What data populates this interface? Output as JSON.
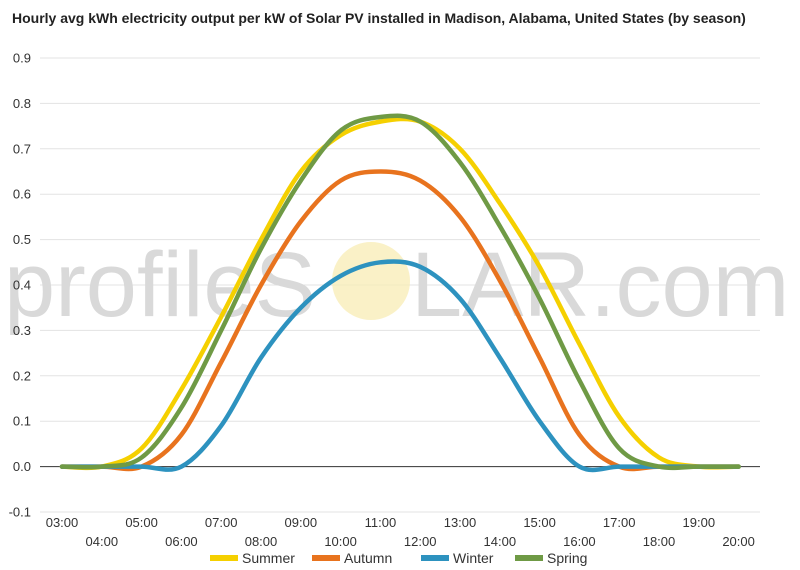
{
  "chart_data": {
    "type": "line",
    "title": "Hourly avg kWh electricity output per kW of Solar PV installed in Madison, Alabama, United States (by season)",
    "xlabel": "",
    "ylabel": "",
    "ylim": [
      -0.1,
      0.9
    ],
    "yticks": [
      "-0.1",
      "0.0",
      "0.1",
      "0.2",
      "0.3",
      "0.4",
      "0.5",
      "0.6",
      "0.7",
      "0.8",
      "0.9"
    ],
    "grid": true,
    "legend": "bottom",
    "x": [
      "03:00",
      "04:00",
      "05:00",
      "06:00",
      "07:00",
      "08:00",
      "09:00",
      "10:00",
      "11:00",
      "12:00",
      "13:00",
      "14:00",
      "15:00",
      "16:00",
      "17:00",
      "18:00",
      "19:00",
      "20:00"
    ],
    "series": [
      {
        "name": "Summer",
        "color": "#f5d000",
        "values": [
          0.0,
          0.0,
          0.04,
          0.17,
          0.33,
          0.5,
          0.65,
          0.73,
          0.76,
          0.76,
          0.7,
          0.58,
          0.44,
          0.27,
          0.11,
          0.02,
          0.0,
          0.0
        ]
      },
      {
        "name": "Autumn",
        "color": "#e8731e",
        "values": [
          0.0,
          0.0,
          0.0,
          0.07,
          0.23,
          0.4,
          0.54,
          0.63,
          0.65,
          0.63,
          0.55,
          0.41,
          0.24,
          0.07,
          0.0,
          0.0,
          0.0,
          0.0
        ]
      },
      {
        "name": "Winter",
        "color": "#2d92bf",
        "values": [
          0.0,
          0.0,
          0.0,
          0.0,
          0.09,
          0.24,
          0.35,
          0.42,
          0.45,
          0.44,
          0.37,
          0.24,
          0.1,
          0.0,
          0.0,
          0.0,
          0.0,
          0.0
        ]
      },
      {
        "name": "Spring",
        "color": "#6f9a45",
        "values": [
          0.0,
          0.0,
          0.02,
          0.13,
          0.3,
          0.48,
          0.63,
          0.74,
          0.77,
          0.76,
          0.67,
          0.53,
          0.37,
          0.19,
          0.04,
          0.0,
          0.0,
          0.0
        ]
      }
    ]
  },
  "watermark": {
    "left": "profileS",
    "right": "LAR.com",
    "sun_color": "#f8e9a8"
  }
}
